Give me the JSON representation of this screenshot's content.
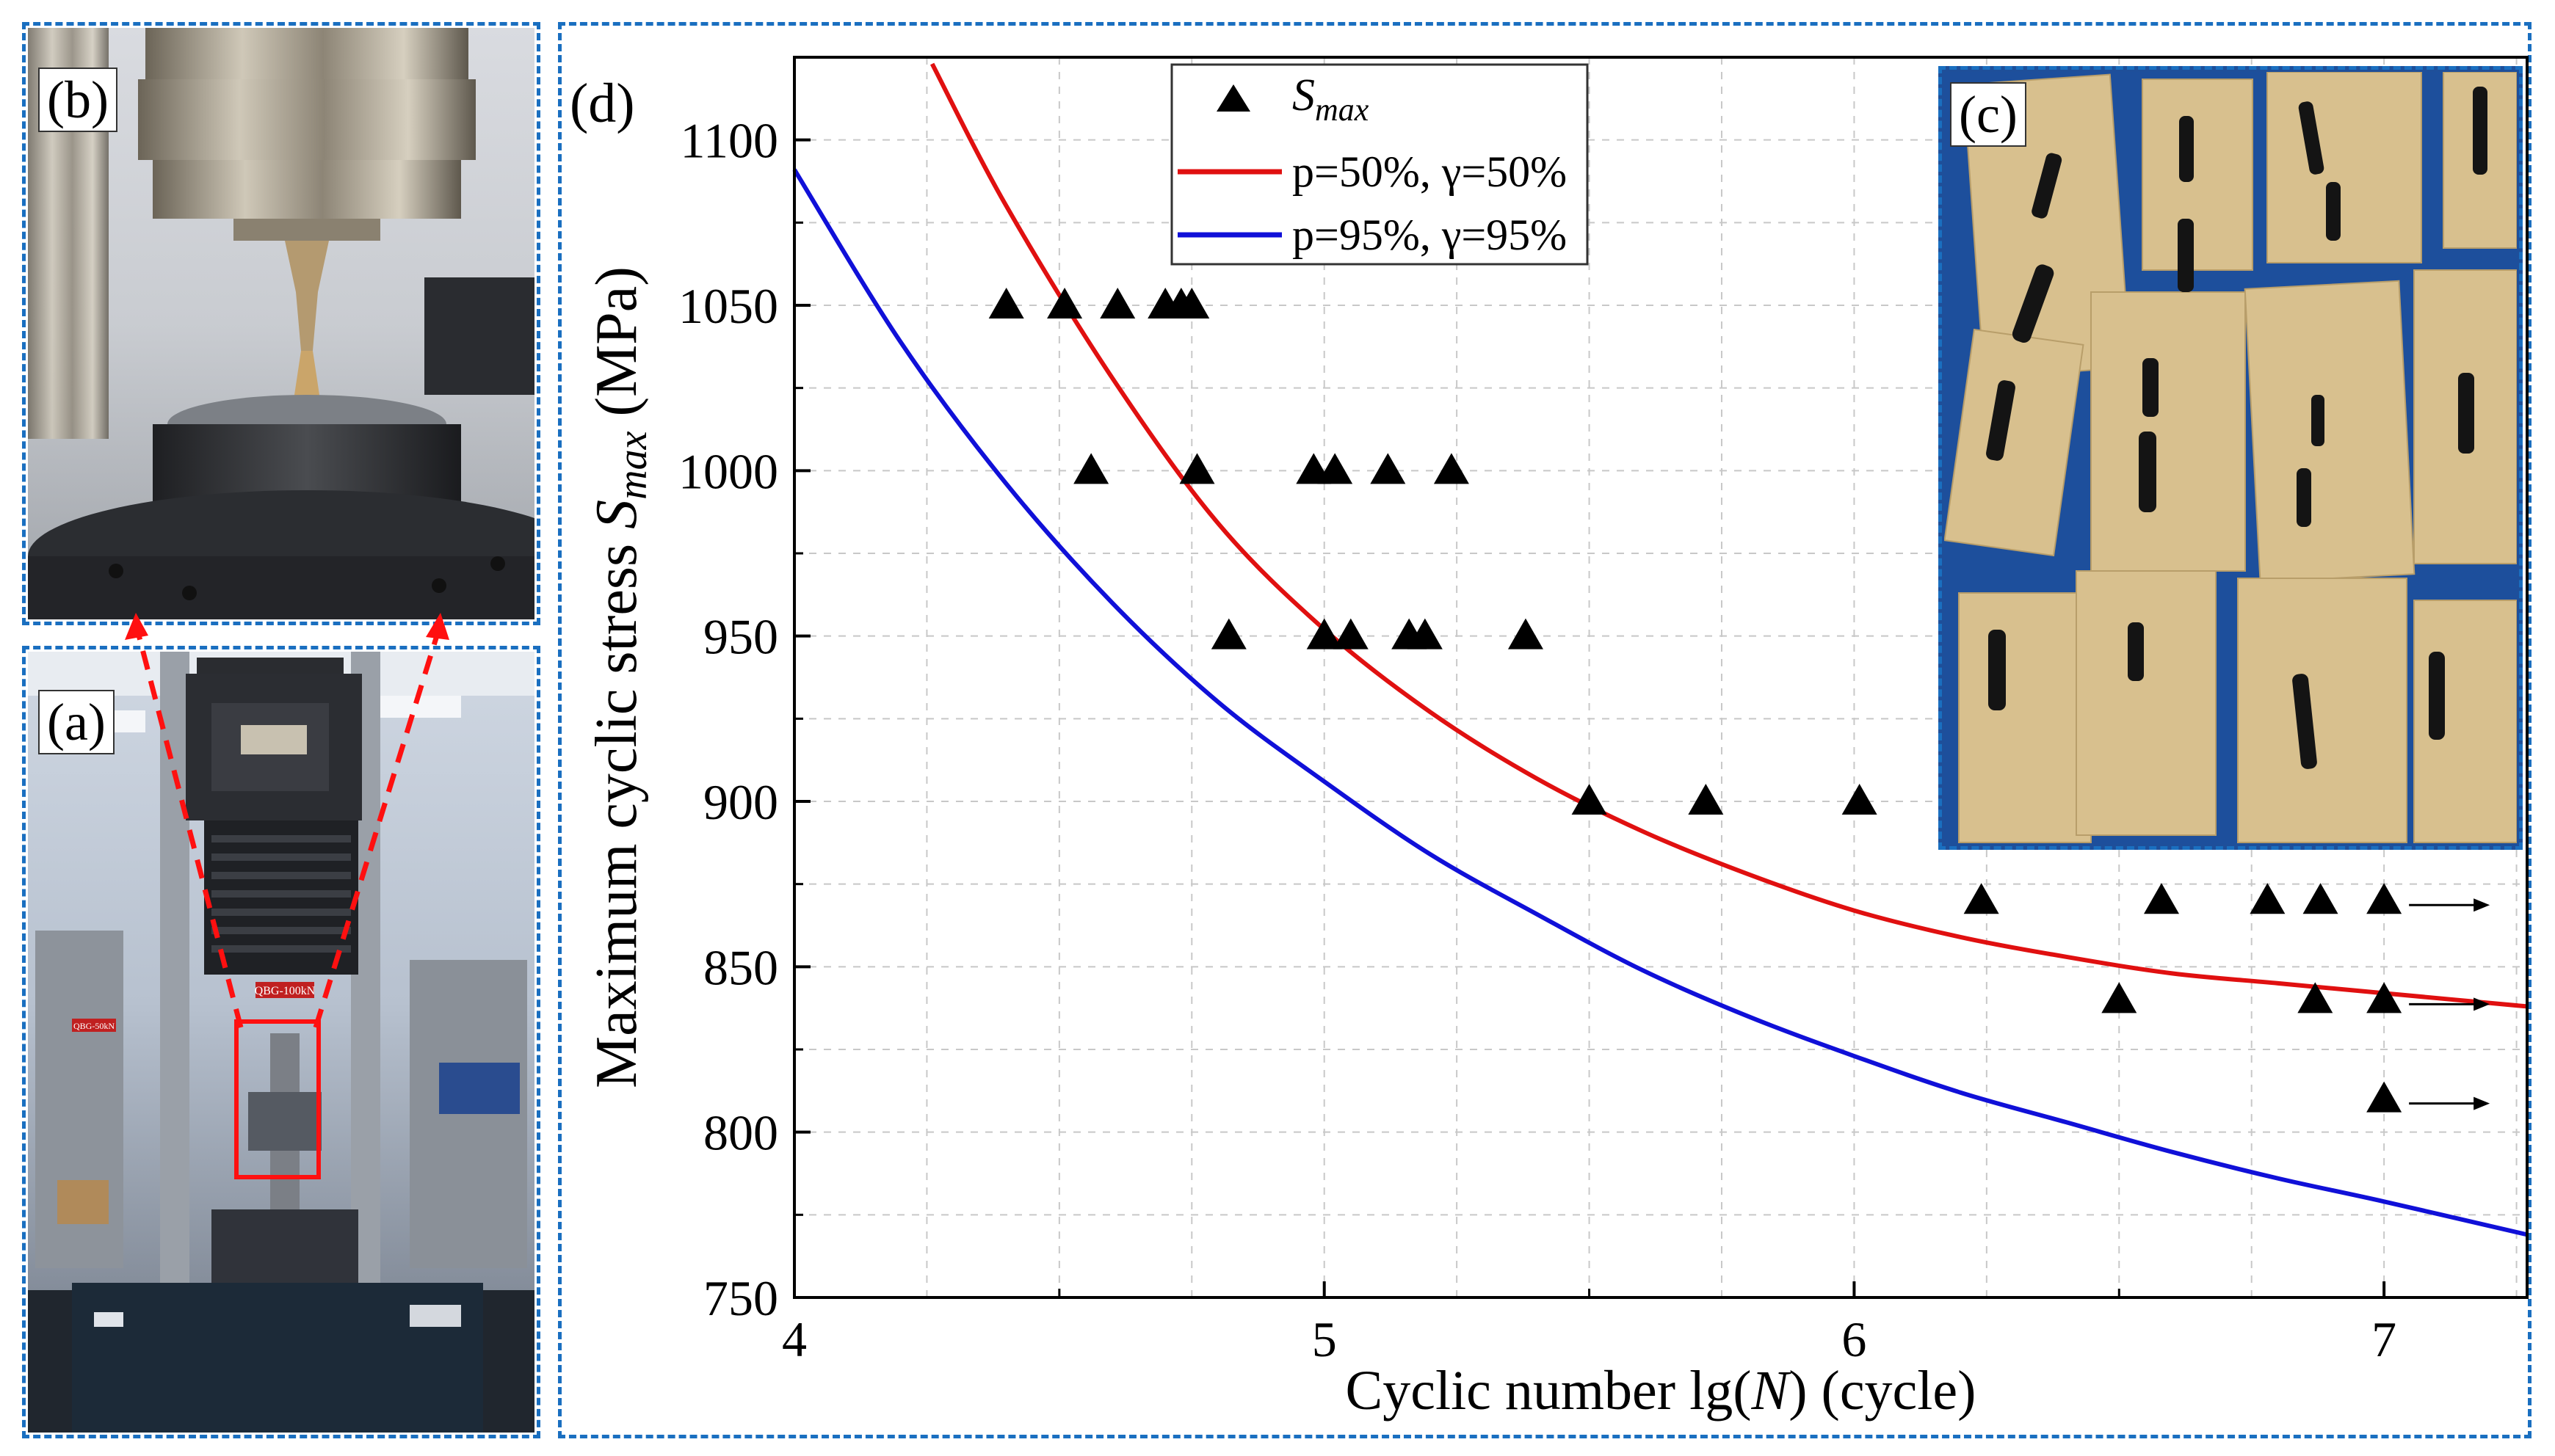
{
  "panels": {
    "a_label": "(a)",
    "b_label": "(b)",
    "c_label": "(c)",
    "d_label": "(d)",
    "a_machine_badge": "QBG-100kN",
    "a_background_badge": "QBG-50kN"
  },
  "colors": {
    "frame_dash": "#1a6fc0",
    "median_curve": "#e01010",
    "lower_curve": "#1010d8",
    "marker": "#000000",
    "grid": "#c8c8c8"
  },
  "chart_data": {
    "type": "scatter",
    "title": "",
    "xlabel_pre": "Cyclic number lg(",
    "xlabel_var": "N",
    "xlabel_post": ") (cycle)",
    "ylabel_pre": "Maximum cyclic stress ",
    "ylabel_var": "S",
    "ylabel_sub": "max",
    "ylabel_post": " (MPa)",
    "xlim": [
      4.0,
      7.27
    ],
    "ylim": [
      750,
      1125
    ],
    "xticks": [
      4,
      5,
      6,
      7
    ],
    "xtick_labels": [
      "4",
      "5",
      "6",
      "7"
    ],
    "yticks": [
      750,
      800,
      850,
      900,
      950,
      1000,
      1050,
      1100
    ],
    "ytick_labels": [
      "750",
      "800",
      "850",
      "900",
      "950",
      "1000",
      "1050",
      "1100"
    ],
    "grid": true,
    "legend_position": "top-center",
    "legend": {
      "marker_label_var": "S",
      "marker_label_sub": "max",
      "median_label": "p=50%, γ=50%",
      "lower_label": "p=95%, γ=95%"
    },
    "series": [
      {
        "name": "S_max",
        "kind": "scatter",
        "points": [
          [
            4.4,
            1050
          ],
          [
            4.51,
            1050
          ],
          [
            4.61,
            1050
          ],
          [
            4.7,
            1050
          ],
          [
            4.73,
            1050
          ],
          [
            4.75,
            1050
          ],
          [
            4.56,
            1000
          ],
          [
            4.76,
            1000
          ],
          [
            4.98,
            1000
          ],
          [
            5.02,
            1000
          ],
          [
            5.12,
            1000
          ],
          [
            5.24,
            1000
          ],
          [
            4.82,
            950
          ],
          [
            5.0,
            950
          ],
          [
            5.05,
            950
          ],
          [
            5.16,
            950
          ],
          [
            5.19,
            950
          ],
          [
            5.38,
            950
          ],
          [
            5.5,
            900
          ],
          [
            5.72,
            900
          ],
          [
            6.01,
            900
          ],
          [
            6.24,
            870
          ],
          [
            6.58,
            870
          ],
          [
            6.78,
            870
          ],
          [
            6.88,
            870
          ],
          [
            7.0,
            870
          ],
          [
            6.5,
            840
          ],
          [
            6.87,
            840
          ],
          [
            7.0,
            840
          ],
          [
            7.0,
            810
          ]
        ],
        "runouts": [
          [
            7.0,
            870
          ],
          [
            7.0,
            840
          ],
          [
            7.0,
            810
          ]
        ]
      },
      {
        "name": "p=50%, γ=50%",
        "kind": "line",
        "x": [
          4.26,
          4.4,
          4.6,
          4.8,
          5.0,
          5.2,
          5.4,
          5.6,
          5.8,
          6.0,
          6.2,
          6.4,
          6.6,
          6.8,
          7.0,
          7.27
        ],
        "y": [
          1123,
          1080,
          1028,
          984,
          952,
          927,
          907,
          891,
          878,
          867,
          859,
          853,
          848,
          845,
          842,
          838
        ]
      },
      {
        "name": "p=95%, γ=95%",
        "kind": "line",
        "x": [
          4.0,
          4.2,
          4.4,
          4.6,
          4.8,
          5.0,
          5.2,
          5.4,
          5.6,
          5.8,
          6.0,
          6.2,
          6.4,
          6.6,
          6.8,
          7.0,
          7.27
        ],
        "y": [
          1091,
          1039,
          996,
          960,
          930,
          906,
          884,
          866,
          849,
          835,
          823,
          812,
          803,
          794,
          786,
          779,
          769
        ]
      }
    ]
  }
}
